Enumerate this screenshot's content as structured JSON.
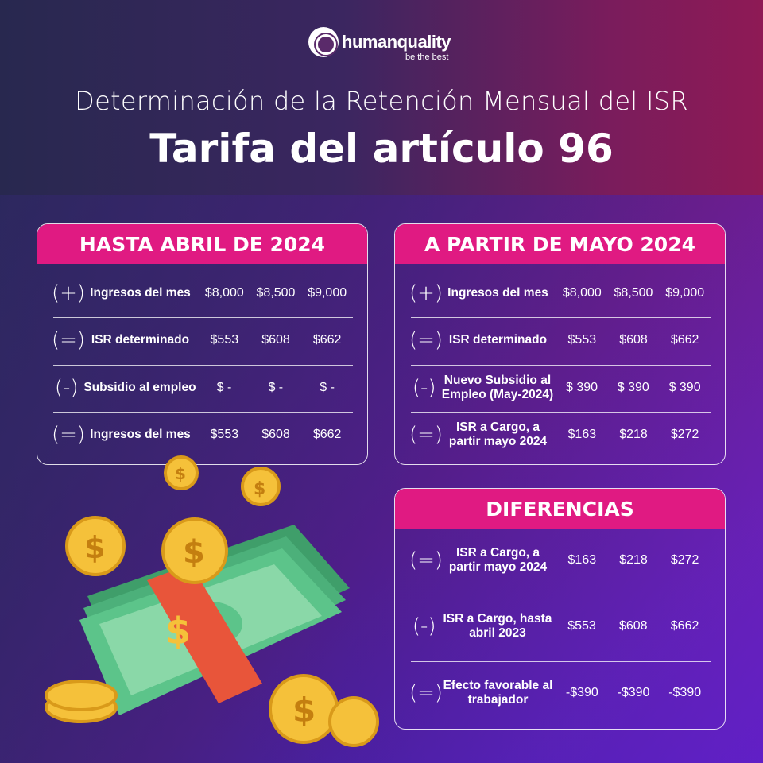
{
  "brand": {
    "name": "humanquality",
    "tagline": "be the best"
  },
  "header": {
    "subtitle": "Determinación de la Retención Mensual del ISR",
    "title": "Tarifa del artículo 96"
  },
  "colors": {
    "accent": "#e01a82",
    "coin": "#f5c13a",
    "bill": "#5cc48a",
    "band": "#e8553a"
  },
  "cards": [
    {
      "title": "HASTA ABRIL DE 2024",
      "rows": [
        {
          "sign": "(+)",
          "label": "Ingresos del mes",
          "values": [
            "$8,000",
            "$8,500",
            "$9,000"
          ]
        },
        {
          "sign": "(=)",
          "label": "ISR determinado",
          "values": [
            "$553",
            "$608",
            "$662"
          ]
        },
        {
          "sign": "(-)",
          "label": "Subsidio al empleo",
          "values": [
            "$ -",
            "$ -",
            "$ -"
          ]
        },
        {
          "sign": "(=)",
          "label": "Ingresos del mes",
          "values": [
            "$553",
            "$608",
            "$662"
          ]
        }
      ]
    },
    {
      "title": "A PARTIR DE MAYO 2024",
      "rows": [
        {
          "sign": "(+)",
          "label": "Ingresos del mes",
          "values": [
            "$8,000",
            "$8,500",
            "$9,000"
          ]
        },
        {
          "sign": "(=)",
          "label": "ISR determinado",
          "values": [
            "$553",
            "$608",
            "$662"
          ]
        },
        {
          "sign": "(-)",
          "label": "Nuevo Subsidio al Empleo (May-2024)",
          "values": [
            "$ 390",
            "$ 390",
            "$ 390"
          ]
        },
        {
          "sign": "(=)",
          "label": "ISR a Cargo, a partir mayo 2024",
          "values": [
            "$163",
            "$218",
            "$272"
          ]
        }
      ]
    },
    {
      "title": "DIFERENCIAS",
      "rows": [
        {
          "sign": "(=)",
          "label": "ISR a Cargo, a partir mayo 2024",
          "values": [
            "$163",
            "$218",
            "$272"
          ]
        },
        {
          "sign": "(-)",
          "label": "ISR a Cargo, hasta abril 2023",
          "values": [
            "$553",
            "$608",
            "$662"
          ]
        },
        {
          "sign": "(=)",
          "label": "Efecto favorable al trabajador",
          "values": [
            "-$390",
            "-$390",
            "-$390"
          ]
        }
      ]
    }
  ]
}
